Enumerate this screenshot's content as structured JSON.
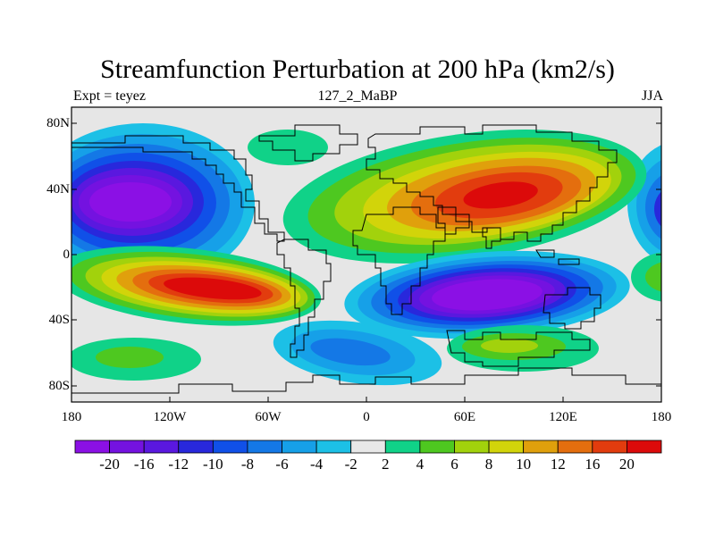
{
  "title": "Streamfunction Perturbation at 200 hPa (km2/s)",
  "subtitle_left": "Expt = teyez",
  "subtitle_center": "127_2_MaBP",
  "subtitle_right": "JJA",
  "x_ticks": [
    "180",
    "120W",
    "60W",
    "0",
    "60E",
    "120E",
    "180"
  ],
  "y_ticks": [
    "80N",
    "40N",
    "0",
    "40S",
    "80S"
  ],
  "colorbar": {
    "boundaries": [
      "-20",
      "-16",
      "-12",
      "-10",
      "-8",
      "-6",
      "-4",
      "-2",
      "2",
      "4",
      "6",
      "8",
      "10",
      "12",
      "16",
      "20"
    ],
    "colors": [
      "#8b10e5",
      "#7412e0",
      "#5a18df",
      "#2828dc",
      "#1050e8",
      "#1478e6",
      "#16a0e8",
      "#1cc0e6",
      "#e8e8e8",
      "#10d288",
      "#4ec820",
      "#a2d20c",
      "#d2d40a",
      "#e0a00c",
      "#e46e0e",
      "#e23c0e",
      "#dc0a0a"
    ]
  }
}
